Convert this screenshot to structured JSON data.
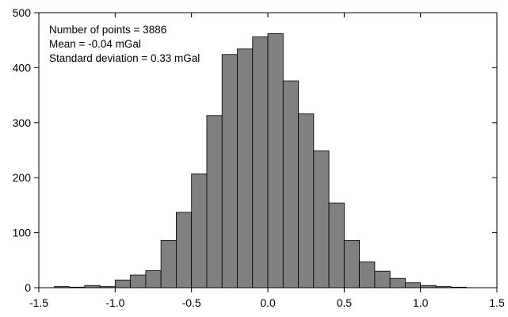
{
  "chart_data": {
    "type": "bar",
    "bin_width": 0.1,
    "bin_starts": [
      -1.4,
      -1.3,
      -1.2,
      -1.1,
      -1.0,
      -0.9,
      -0.8,
      -0.7,
      -0.6,
      -0.5,
      -0.4,
      -0.3,
      -0.2,
      -0.1,
      0.0,
      0.1,
      0.2,
      0.3,
      0.4,
      0.5,
      0.6,
      0.7,
      0.8,
      0.9,
      1.0,
      1.1,
      1.2
    ],
    "values": [
      2,
      1,
      4,
      2,
      14,
      23,
      31,
      86,
      137,
      207,
      313,
      424,
      434,
      456,
      462,
      376,
      316,
      249,
      154,
      86,
      47,
      30,
      17,
      9,
      4,
      2,
      1
    ],
    "xlim": [
      -1.5,
      1.5
    ],
    "ylim": [
      0,
      500
    ],
    "xticks": [
      -1.5,
      -1.0,
      -0.5,
      0.0,
      0.5,
      1.0,
      1.5
    ],
    "xtick_labels": [
      "-1.5",
      "-1.0",
      "-0.5",
      "0.0",
      "0.5",
      "1.0",
      "1.5"
    ],
    "yticks": [
      0,
      100,
      200,
      300,
      400,
      500
    ],
    "ytick_labels": [
      "0",
      "100",
      "200",
      "300",
      "400",
      "500"
    ],
    "xlabel": "",
    "ylabel": "",
    "title": "",
    "grid": false,
    "bar_color": "#808080",
    "bar_edge_color": "#000000",
    "annotations": [
      "Number of points = 3886",
      "Mean = -0.04 mGal",
      "Standard deviation = 0.33 mGal"
    ]
  }
}
